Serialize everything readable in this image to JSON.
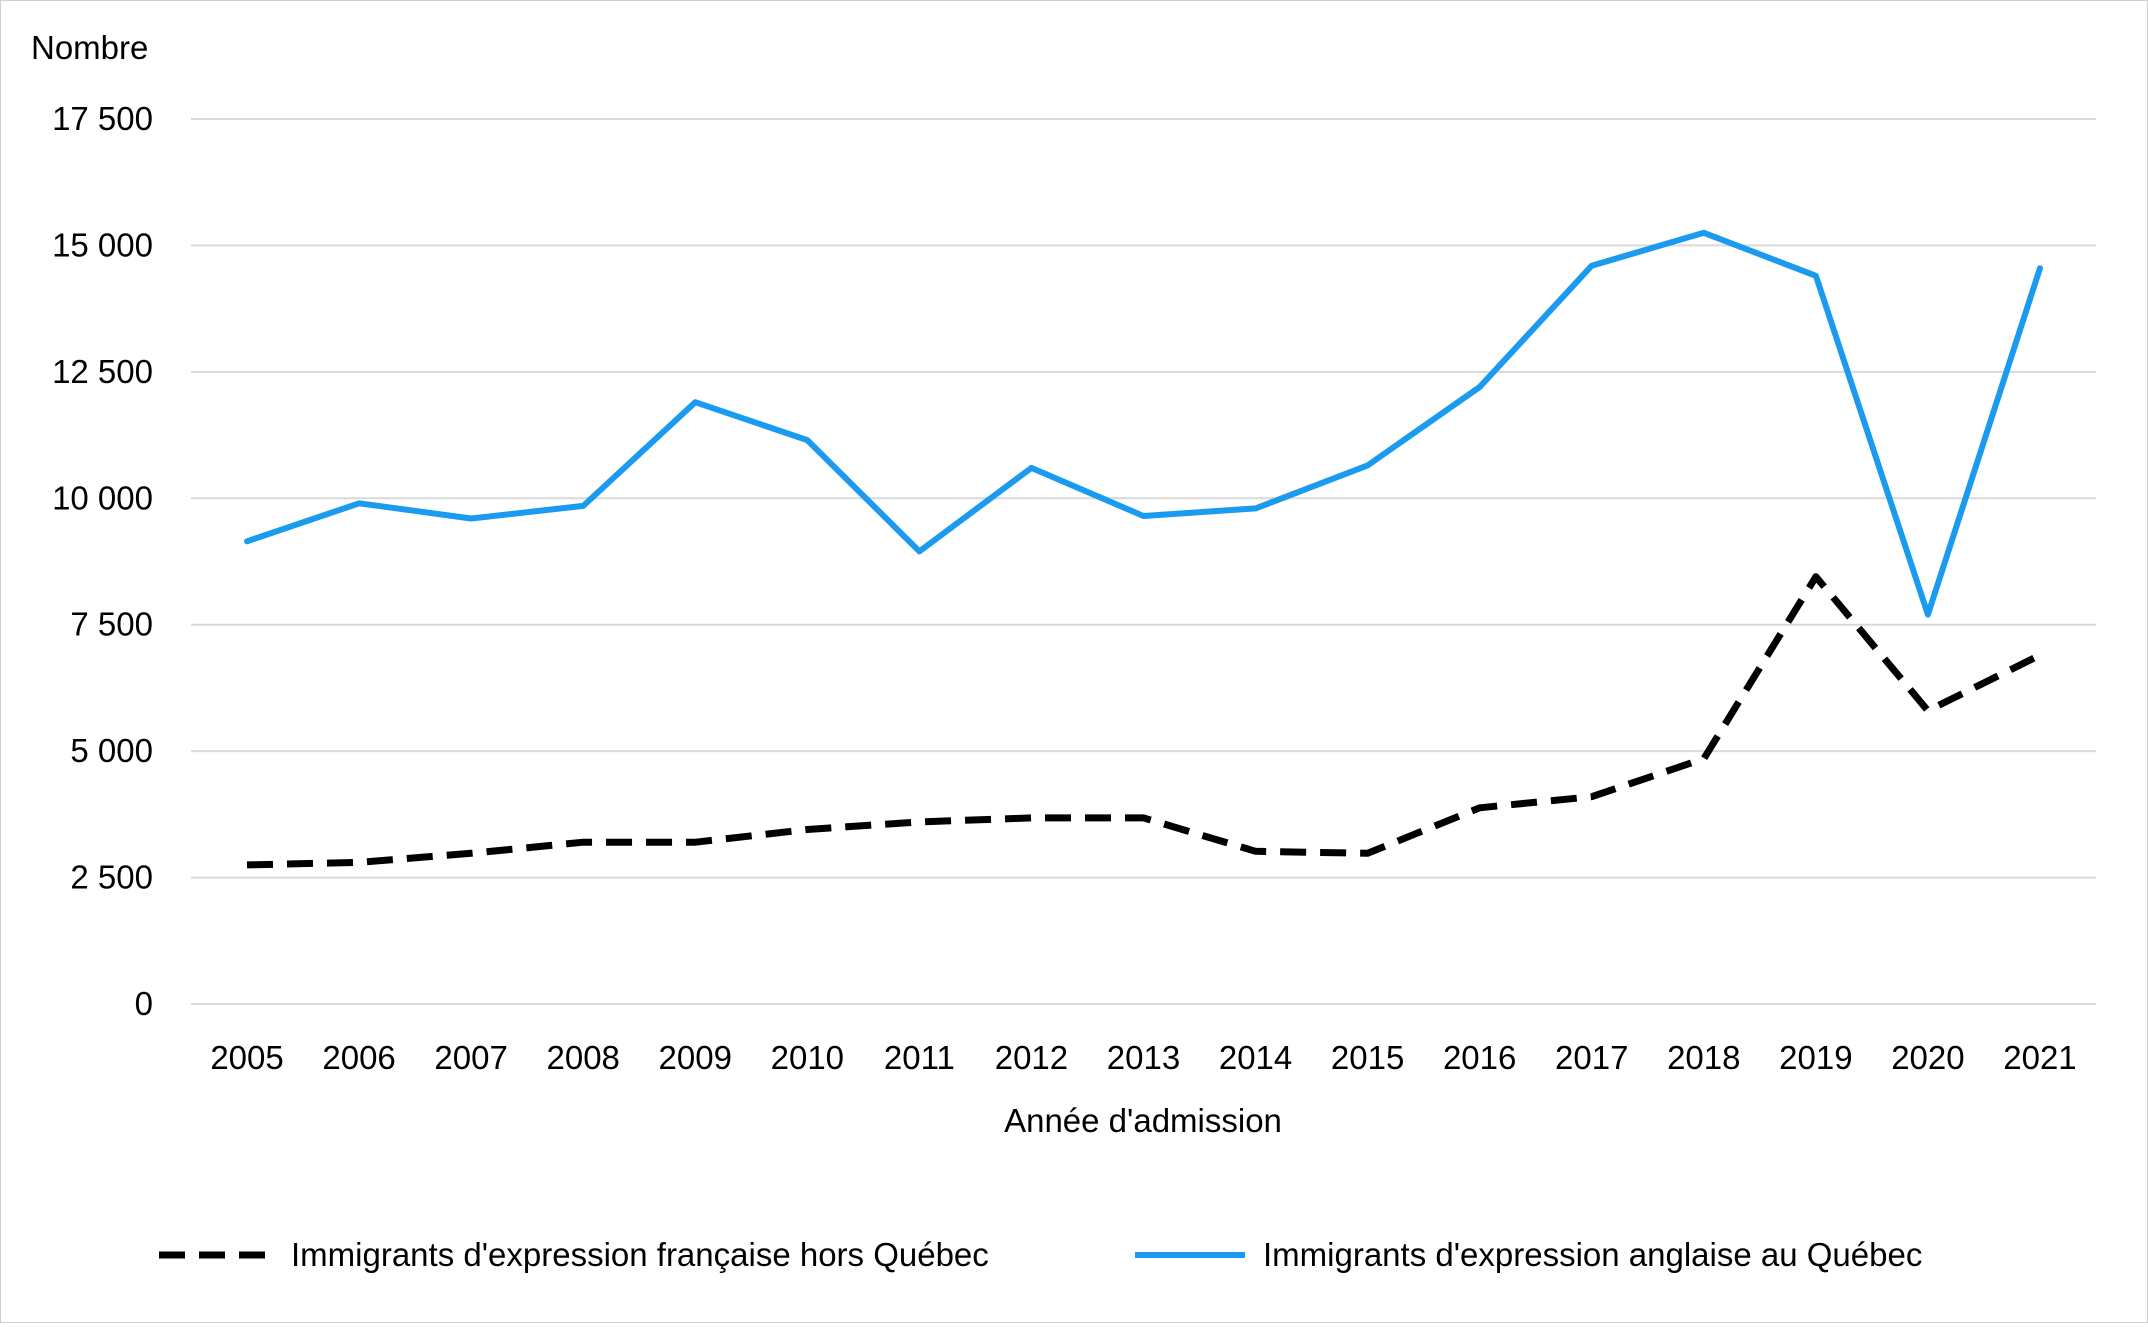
{
  "chart_data": {
    "type": "line",
    "title": "",
    "ylabel": "Nombre",
    "xlabel": "Année d'admission",
    "ylim": [
      0,
      17500
    ],
    "yticks": [
      0,
      2500,
      5000,
      7500,
      10000,
      12500,
      15000,
      17500
    ],
    "ytick_labels": [
      "0",
      "2 500",
      "5 000",
      "7 500",
      "10 000",
      "12 500",
      "15 000",
      "17 500"
    ],
    "categories": [
      "2005",
      "2006",
      "2007",
      "2008",
      "2009",
      "2010",
      "2011",
      "2012",
      "2013",
      "2014",
      "2015",
      "2016",
      "2017",
      "2018",
      "2019",
      "2020",
      "2021"
    ],
    "grid": true,
    "legend_position": "bottom",
    "series": [
      {
        "name": "Immigrants d'expression française hors Québec",
        "color": "#000000",
        "style": "dashed",
        "values": [
          2750,
          2800,
          2980,
          3200,
          3200,
          3450,
          3600,
          3680,
          3680,
          3020,
          2980,
          3880,
          4100,
          4850,
          8450,
          5800,
          6900
        ]
      },
      {
        "name": "Immigrants d'expression anglaise au Québec",
        "color": "#1a9bf0",
        "style": "solid",
        "values": [
          9150,
          9900,
          9600,
          9850,
          11900,
          11150,
          8950,
          10600,
          9650,
          9800,
          10650,
          12200,
          14600,
          15250,
          14400,
          7700,
          14550
        ]
      }
    ]
  }
}
